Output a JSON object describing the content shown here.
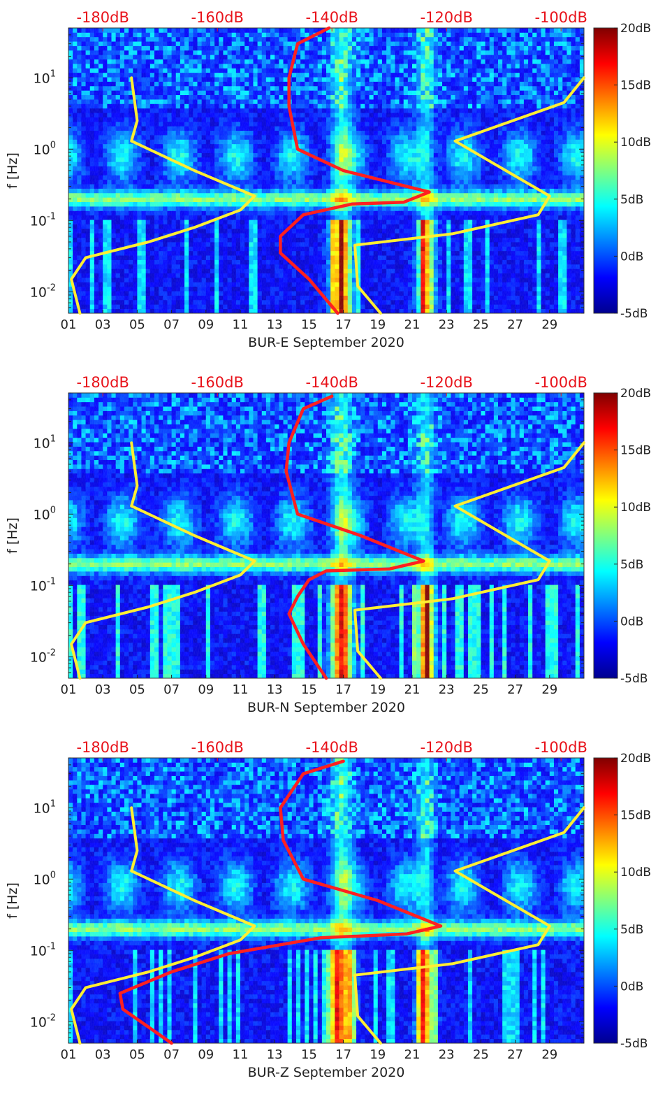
{
  "colors": {
    "noise_model": "#ff2020",
    "overlay_curve": "#ffee33",
    "top_axis_text": "#e8121a",
    "text": "#222222"
  },
  "colorbar": {
    "ticks": [
      "20dB",
      "15dB",
      "10dB",
      "5dB",
      "0dB",
      "-5dB"
    ],
    "range_db": [
      -5,
      20
    ],
    "colormap": "jet"
  },
  "chart_data": [
    {
      "type": "heatmap",
      "station": "BUR-E",
      "xlabel": "BUR-E September 2020",
      "ylabel": "f [Hz]",
      "x_ticks": [
        "01",
        "03",
        "05",
        "07",
        "09",
        "11",
        "13",
        "15",
        "17",
        "19",
        "21",
        "23",
        "25",
        "27",
        "29"
      ],
      "x_range_days": [
        1,
        31
      ],
      "y_scale": "log",
      "y_range_hz": [
        0.005,
        50
      ],
      "y_ticks": [
        {
          "base": "10",
          "exp": "1",
          "value": 10
        },
        {
          "base": "10",
          "exp": "0",
          "value": 1
        },
        {
          "base": "10",
          "exp": "-1",
          "value": 0.1
        },
        {
          "base": "10",
          "exp": "-2",
          "value": 0.01
        }
      ],
      "top_axis_ticks": [
        "-180dB",
        "-160dB",
        "-140dB",
        "-120dB",
        "-100dB"
      ],
      "top_axis_range_db": [
        -186,
        -96
      ],
      "noise_curve_db": [
        [
          -140.5,
          50
        ],
        [
          -146,
          30
        ],
        [
          -147.5,
          10
        ],
        [
          -147.5,
          4
        ],
        [
          -146,
          1
        ],
        [
          -138,
          0.5
        ],
        [
          -123,
          0.25
        ],
        [
          -127.5,
          0.18
        ],
        [
          -136.5,
          0.17
        ],
        [
          -145,
          0.12
        ],
        [
          -149,
          0.06
        ],
        [
          -149,
          0.035
        ],
        [
          -144,
          0.015
        ],
        [
          -139,
          0.005
        ]
      ],
      "overlay_curve_db": [
        [
          -175,
          10
        ],
        [
          -174,
          2.5
        ],
        [
          -175,
          1.3
        ],
        [
          -164,
          0.5
        ],
        [
          -153.5,
          0.22
        ],
        [
          -156,
          0.14
        ],
        [
          -164,
          0.08
        ],
        [
          -172,
          0.05
        ],
        [
          -183,
          0.03
        ],
        [
          -185.5,
          0.015
        ],
        [
          -184,
          0.005
        ]
      ],
      "overlay_curve_right_db": [
        [
          -96,
          10
        ],
        [
          -99.5,
          4.5
        ],
        [
          -118.5,
          1.3
        ],
        [
          -102,
          0.22
        ],
        [
          -104,
          0.12
        ],
        [
          -119,
          0.065
        ],
        [
          -136,
          0.045
        ],
        [
          -135.5,
          0.012
        ],
        [
          -131.5,
          0.005
        ]
      ]
    },
    {
      "type": "heatmap",
      "station": "BUR-N",
      "xlabel": "BUR-N September 2020",
      "ylabel": "f [Hz]",
      "x_ticks": [
        "01",
        "03",
        "05",
        "07",
        "09",
        "11",
        "13",
        "15",
        "17",
        "19",
        "21",
        "23",
        "25",
        "27",
        "29"
      ],
      "x_range_days": [
        1,
        31
      ],
      "y_scale": "log",
      "y_range_hz": [
        0.005,
        50
      ],
      "y_ticks": [
        {
          "base": "10",
          "exp": "1",
          "value": 10
        },
        {
          "base": "10",
          "exp": "0",
          "value": 1
        },
        {
          "base": "10",
          "exp": "-1",
          "value": 0.1
        },
        {
          "base": "10",
          "exp": "-2",
          "value": 0.01
        }
      ],
      "top_axis_ticks": [
        "-180dB",
        "-160dB",
        "-140dB",
        "-120dB",
        "-100dB"
      ],
      "top_axis_range_db": [
        -186,
        -96
      ],
      "noise_curve_db": [
        [
          -140,
          45
        ],
        [
          -145,
          30
        ],
        [
          -147.5,
          10
        ],
        [
          -148,
          4
        ],
        [
          -146,
          1
        ],
        [
          -135,
          0.5
        ],
        [
          -124,
          0.22
        ],
        [
          -130,
          0.17
        ],
        [
          -141,
          0.16
        ],
        [
          -144,
          0.12
        ],
        [
          -146,
          0.07
        ],
        [
          -147.5,
          0.04
        ],
        [
          -145,
          0.015
        ],
        [
          -141,
          0.005
        ]
      ],
      "overlay_curve_db": [
        [
          -175,
          10
        ],
        [
          -174,
          2.5
        ],
        [
          -175,
          1.3
        ],
        [
          -164,
          0.5
        ],
        [
          -153.5,
          0.22
        ],
        [
          -156,
          0.14
        ],
        [
          -164,
          0.08
        ],
        [
          -172,
          0.05
        ],
        [
          -183,
          0.03
        ],
        [
          -185.5,
          0.015
        ],
        [
          -184,
          0.005
        ]
      ],
      "overlay_curve_right_db": [
        [
          -96,
          10
        ],
        [
          -99.5,
          4.5
        ],
        [
          -118.5,
          1.3
        ],
        [
          -102,
          0.22
        ],
        [
          -104,
          0.12
        ],
        [
          -119,
          0.065
        ],
        [
          -136,
          0.045
        ],
        [
          -135.5,
          0.012
        ],
        [
          -131.5,
          0.005
        ]
      ]
    },
    {
      "type": "heatmap",
      "station": "BUR-Z",
      "xlabel": "BUR-Z September 2020",
      "ylabel": "f [Hz]",
      "x_ticks": [
        "01",
        "03",
        "05",
        "07",
        "09",
        "11",
        "13",
        "15",
        "17",
        "19",
        "21",
        "23",
        "25",
        "27",
        "29"
      ],
      "x_range_days": [
        1,
        31
      ],
      "y_scale": "log",
      "y_range_hz": [
        0.005,
        50
      ],
      "y_ticks": [
        {
          "base": "10",
          "exp": "1",
          "value": 10
        },
        {
          "base": "10",
          "exp": "0",
          "value": 1
        },
        {
          "base": "10",
          "exp": "-1",
          "value": 0.1
        },
        {
          "base": "10",
          "exp": "-2",
          "value": 0.01
        }
      ],
      "top_axis_ticks": [
        "-180dB",
        "-160dB",
        "-140dB",
        "-120dB",
        "-100dB"
      ],
      "top_axis_range_db": [
        -186,
        -96
      ],
      "noise_curve_db": [
        [
          -138,
          45
        ],
        [
          -145,
          30
        ],
        [
          -149,
          10
        ],
        [
          -148.5,
          3.5
        ],
        [
          -145,
          1
        ],
        [
          -132,
          0.5
        ],
        [
          -121,
          0.22
        ],
        [
          -127,
          0.17
        ],
        [
          -142,
          0.15
        ],
        [
          -158,
          0.09
        ],
        [
          -168,
          0.05
        ],
        [
          -177,
          0.025
        ],
        [
          -176.5,
          0.015
        ],
        [
          -168,
          0.005
        ]
      ],
      "overlay_curve_db": [
        [
          -175,
          10
        ],
        [
          -174,
          2.5
        ],
        [
          -175,
          1.3
        ],
        [
          -164,
          0.5
        ],
        [
          -153.5,
          0.22
        ],
        [
          -156,
          0.14
        ],
        [
          -164,
          0.08
        ],
        [
          -172,
          0.05
        ],
        [
          -183,
          0.03
        ],
        [
          -185.5,
          0.015
        ],
        [
          -184,
          0.005
        ]
      ],
      "overlay_curve_right_db": [
        [
          -96,
          10
        ],
        [
          -99.5,
          4.5
        ],
        [
          -118.5,
          1.3
        ],
        [
          -102,
          0.22
        ],
        [
          -104,
          0.12
        ],
        [
          -119,
          0.065
        ],
        [
          -136,
          0.045
        ],
        [
          -135.5,
          0.012
        ],
        [
          -131.5,
          0.005
        ]
      ]
    }
  ]
}
